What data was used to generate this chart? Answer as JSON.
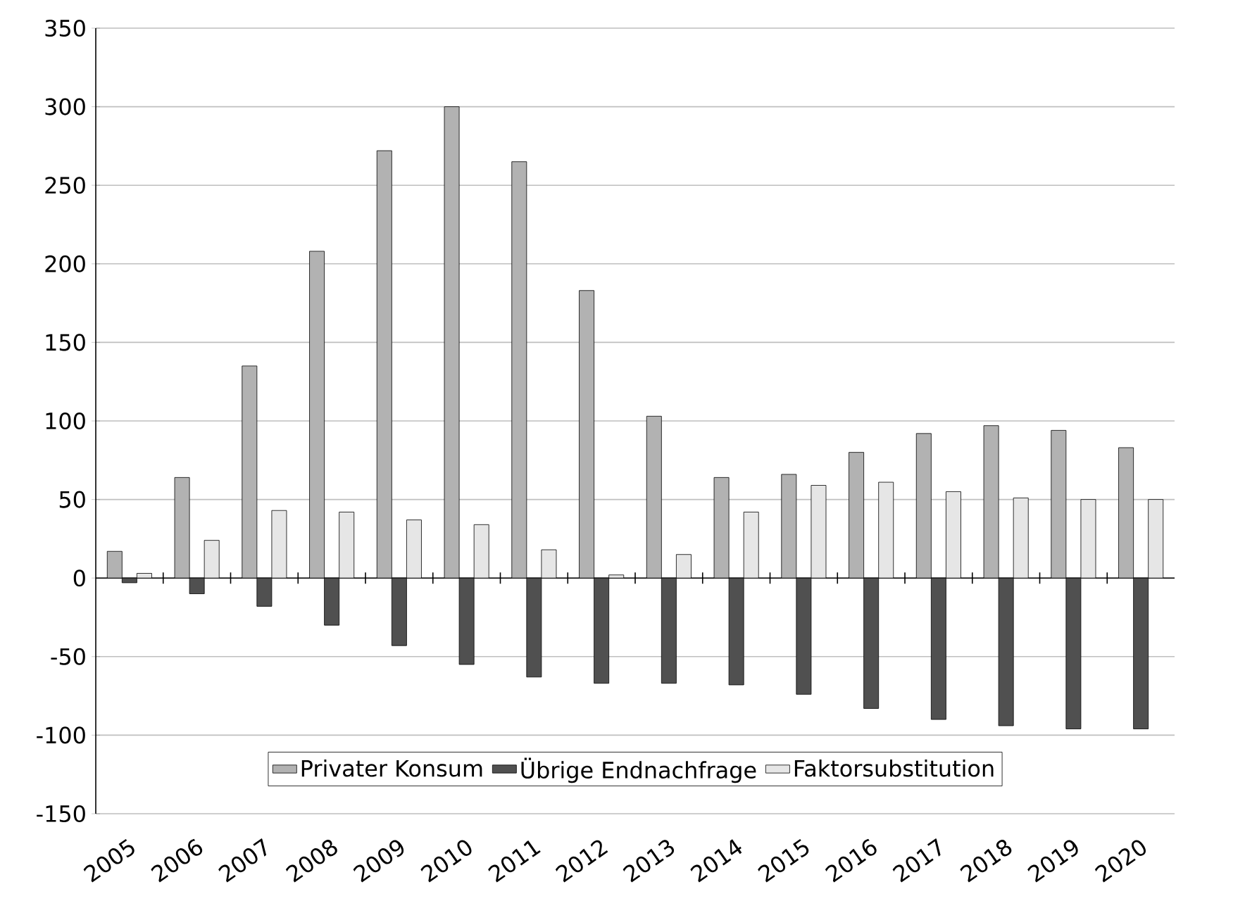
{
  "chart_data": {
    "type": "bar",
    "categories": [
      "2005",
      "2006",
      "2007",
      "2008",
      "2009",
      "2010",
      "2011",
      "2012",
      "2013",
      "2014",
      "2015",
      "2016",
      "2017",
      "2018",
      "2019",
      "2020"
    ],
    "series": [
      {
        "name": "Privater Konsum",
        "color": "#b2b2b2",
        "values": [
          17,
          64,
          135,
          208,
          272,
          300,
          265,
          183,
          103,
          64,
          66,
          80,
          92,
          97,
          94,
          83
        ]
      },
      {
        "name": "Übrige Endnachfrage",
        "color": "#505050",
        "values": [
          -3,
          -10,
          -18,
          -30,
          -43,
          -55,
          -63,
          -67,
          -67,
          -68,
          -74,
          -83,
          -90,
          -94,
          -96,
          -96
        ]
      },
      {
        "name": "Faktorsubstitution",
        "color": "#e6e6e6",
        "values": [
          3,
          24,
          43,
          42,
          37,
          34,
          18,
          2,
          15,
          42,
          59,
          61,
          55,
          51,
          50,
          50
        ]
      }
    ],
    "ylim": [
      -150,
      350
    ],
    "yticks": [
      -150,
      -100,
      -50,
      0,
      50,
      100,
      150,
      200,
      250,
      300,
      350
    ],
    "grid": "y",
    "legend": "bottom"
  }
}
